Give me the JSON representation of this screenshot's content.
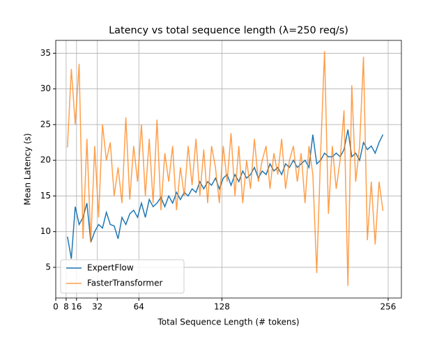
{
  "chart_data": {
    "type": "line",
    "title": "Latency vs total sequence length (λ=250 req/s)",
    "x_label": "Total Sequence Length (# tokens)",
    "y_label": "Mean Latency (s)",
    "x": [
      9,
      12,
      15,
      18,
      21,
      24,
      27,
      30,
      33,
      36,
      39,
      42,
      45,
      48,
      51,
      54,
      57,
      60,
      63,
      66,
      69,
      72,
      75,
      78,
      81,
      84,
      87,
      90,
      93,
      96,
      99,
      102,
      105,
      108,
      111,
      114,
      117,
      120,
      123,
      126,
      129,
      132,
      135,
      138,
      141,
      144,
      147,
      150,
      153,
      156,
      159,
      162,
      165,
      168,
      171,
      174,
      177,
      180,
      183,
      186,
      189,
      192,
      195,
      198,
      201,
      204,
      207,
      210,
      213,
      216,
      219,
      222,
      225,
      228,
      231,
      234,
      237,
      240,
      243,
      246,
      249,
      252
    ],
    "series": [
      {
        "name": "ExpertFlow",
        "color": "#1f77b4",
        "values": [
          9.3,
          6.2,
          13.5,
          11,
          12,
          14,
          8.5,
          10,
          11,
          10.5,
          12.7,
          11,
          10.8,
          9,
          12,
          11,
          12.5,
          13,
          12,
          14,
          12,
          14.5,
          13.5,
          14,
          14.8,
          13.5,
          15,
          14,
          15.5,
          14.5,
          15.5,
          15,
          16,
          15.5,
          17,
          16,
          17,
          16.5,
          17.5,
          16,
          17.5,
          18,
          16.5,
          18,
          17,
          18.5,
          17.5,
          18,
          19,
          17.5,
          18.5,
          18,
          19.5,
          18.5,
          19,
          18,
          19.5,
          19,
          20,
          19,
          19.5,
          20,
          19,
          23.6,
          19.5,
          20,
          21,
          20.5,
          20.5,
          21,
          20.5,
          21.5,
          24.3,
          20.5,
          21,
          20,
          22.5,
          21.5,
          22,
          21,
          22.5,
          23.6
        ]
      },
      {
        "name": "FasterTransformer",
        "color": "#ff7f0e",
        "values": [
          21.8,
          32.8,
          25,
          33.5,
          9,
          23,
          8.5,
          22,
          12,
          25,
          20,
          22.5,
          15,
          19,
          14,
          26,
          14.5,
          22,
          17,
          25,
          15,
          23,
          14,
          25.7,
          13,
          21,
          17,
          22,
          13,
          19,
          15,
          22,
          16.5,
          23,
          15,
          21.5,
          14,
          22,
          19,
          14,
          22,
          17,
          23.8,
          15,
          22,
          14,
          20,
          16,
          23,
          17,
          20,
          22,
          16,
          21,
          18,
          23,
          16,
          20,
          22,
          17,
          21,
          14,
          22,
          18,
          4.2,
          21,
          35.3,
          12.5,
          22,
          16,
          20,
          27,
          2.4,
          30.5,
          17,
          22,
          34.5,
          8.8,
          17,
          8.2,
          17,
          12.9
        ]
      }
    ],
    "xlim": [
      0,
      266.2
    ],
    "ylim": [
      0.7,
      36.8
    ],
    "xticks": [
      0,
      8,
      16,
      32,
      64,
      128,
      256
    ],
    "yticks": [
      5,
      10,
      15,
      20,
      25,
      30,
      35
    ],
    "grid": true,
    "legend": "lower left"
  }
}
